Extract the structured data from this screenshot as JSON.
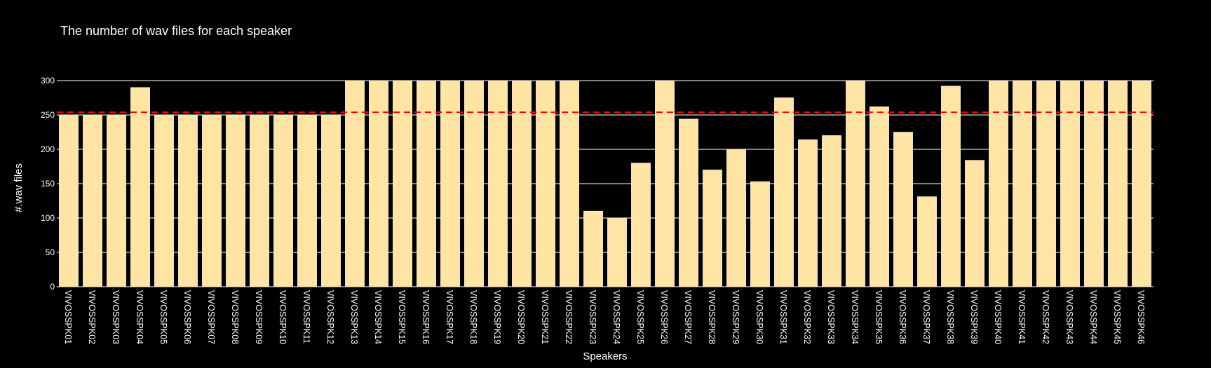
{
  "chart_data": {
    "type": "bar",
    "title": "The number of wav files for each speaker",
    "xlabel": "Speakers",
    "ylabel": "#.wav files",
    "ylim": [
      0,
      300
    ],
    "yticks": [
      0,
      50,
      100,
      150,
      200,
      250,
      300
    ],
    "grid": true,
    "bar_color": "#FFE4A3",
    "background": "#000000",
    "reference_line": {
      "value": 254,
      "color": "#FF0000",
      "style": "dashed"
    },
    "categories": [
      "VIVOSSPK01",
      "VIVOSSPK02",
      "VIVOSSPK03",
      "VIVOSSPK04",
      "VIVOSSPK05",
      "VIVOSSPK06",
      "VIVOSSPK07",
      "VIVOSSPK08",
      "VIVOSSPK09",
      "VIVOSSPK10",
      "VIVOSSPK11",
      "VIVOSSPK12",
      "VIVOSSPK13",
      "VIVOSSPK14",
      "VIVOSSPK15",
      "VIVOSSPK16",
      "VIVOSSPK17",
      "VIVOSSPK18",
      "VIVOSSPK19",
      "VIVOSSPK20",
      "VIVOSSPK21",
      "VIVOSSPK22",
      "VIVOSSPK23",
      "VIVOSSPK24",
      "VIVOSSPK25",
      "VIVOSSPK26",
      "VIVOSSPK27",
      "VIVOSSPK28",
      "VIVOSSPK29",
      "VIVOSSPK30",
      "VIVOSSPK31",
      "VIVOSSPK32",
      "VIVOSSPK33",
      "VIVOSSPK34",
      "VIVOSSPK35",
      "VIVOSSPK36",
      "VIVOSSPK37",
      "VIVOSSPK38",
      "VIVOSSPK39",
      "VIVOSSPK40",
      "VIVOSSPK41",
      "VIVOSSPK42",
      "VIVOSSPK43",
      "VIVOSSPK44",
      "VIVOSSPK45",
      "VIVOSSPK46"
    ],
    "values": [
      250,
      250,
      250,
      290,
      250,
      250,
      250,
      250,
      250,
      250,
      250,
      250,
      300,
      300,
      300,
      300,
      300,
      300,
      300,
      300,
      300,
      300,
      110,
      100,
      180,
      300,
      244,
      170,
      200,
      153,
      275,
      214,
      220,
      300,
      262,
      225,
      131,
      292,
      184,
      300,
      300,
      300,
      300,
      300,
      300,
      300
    ]
  }
}
